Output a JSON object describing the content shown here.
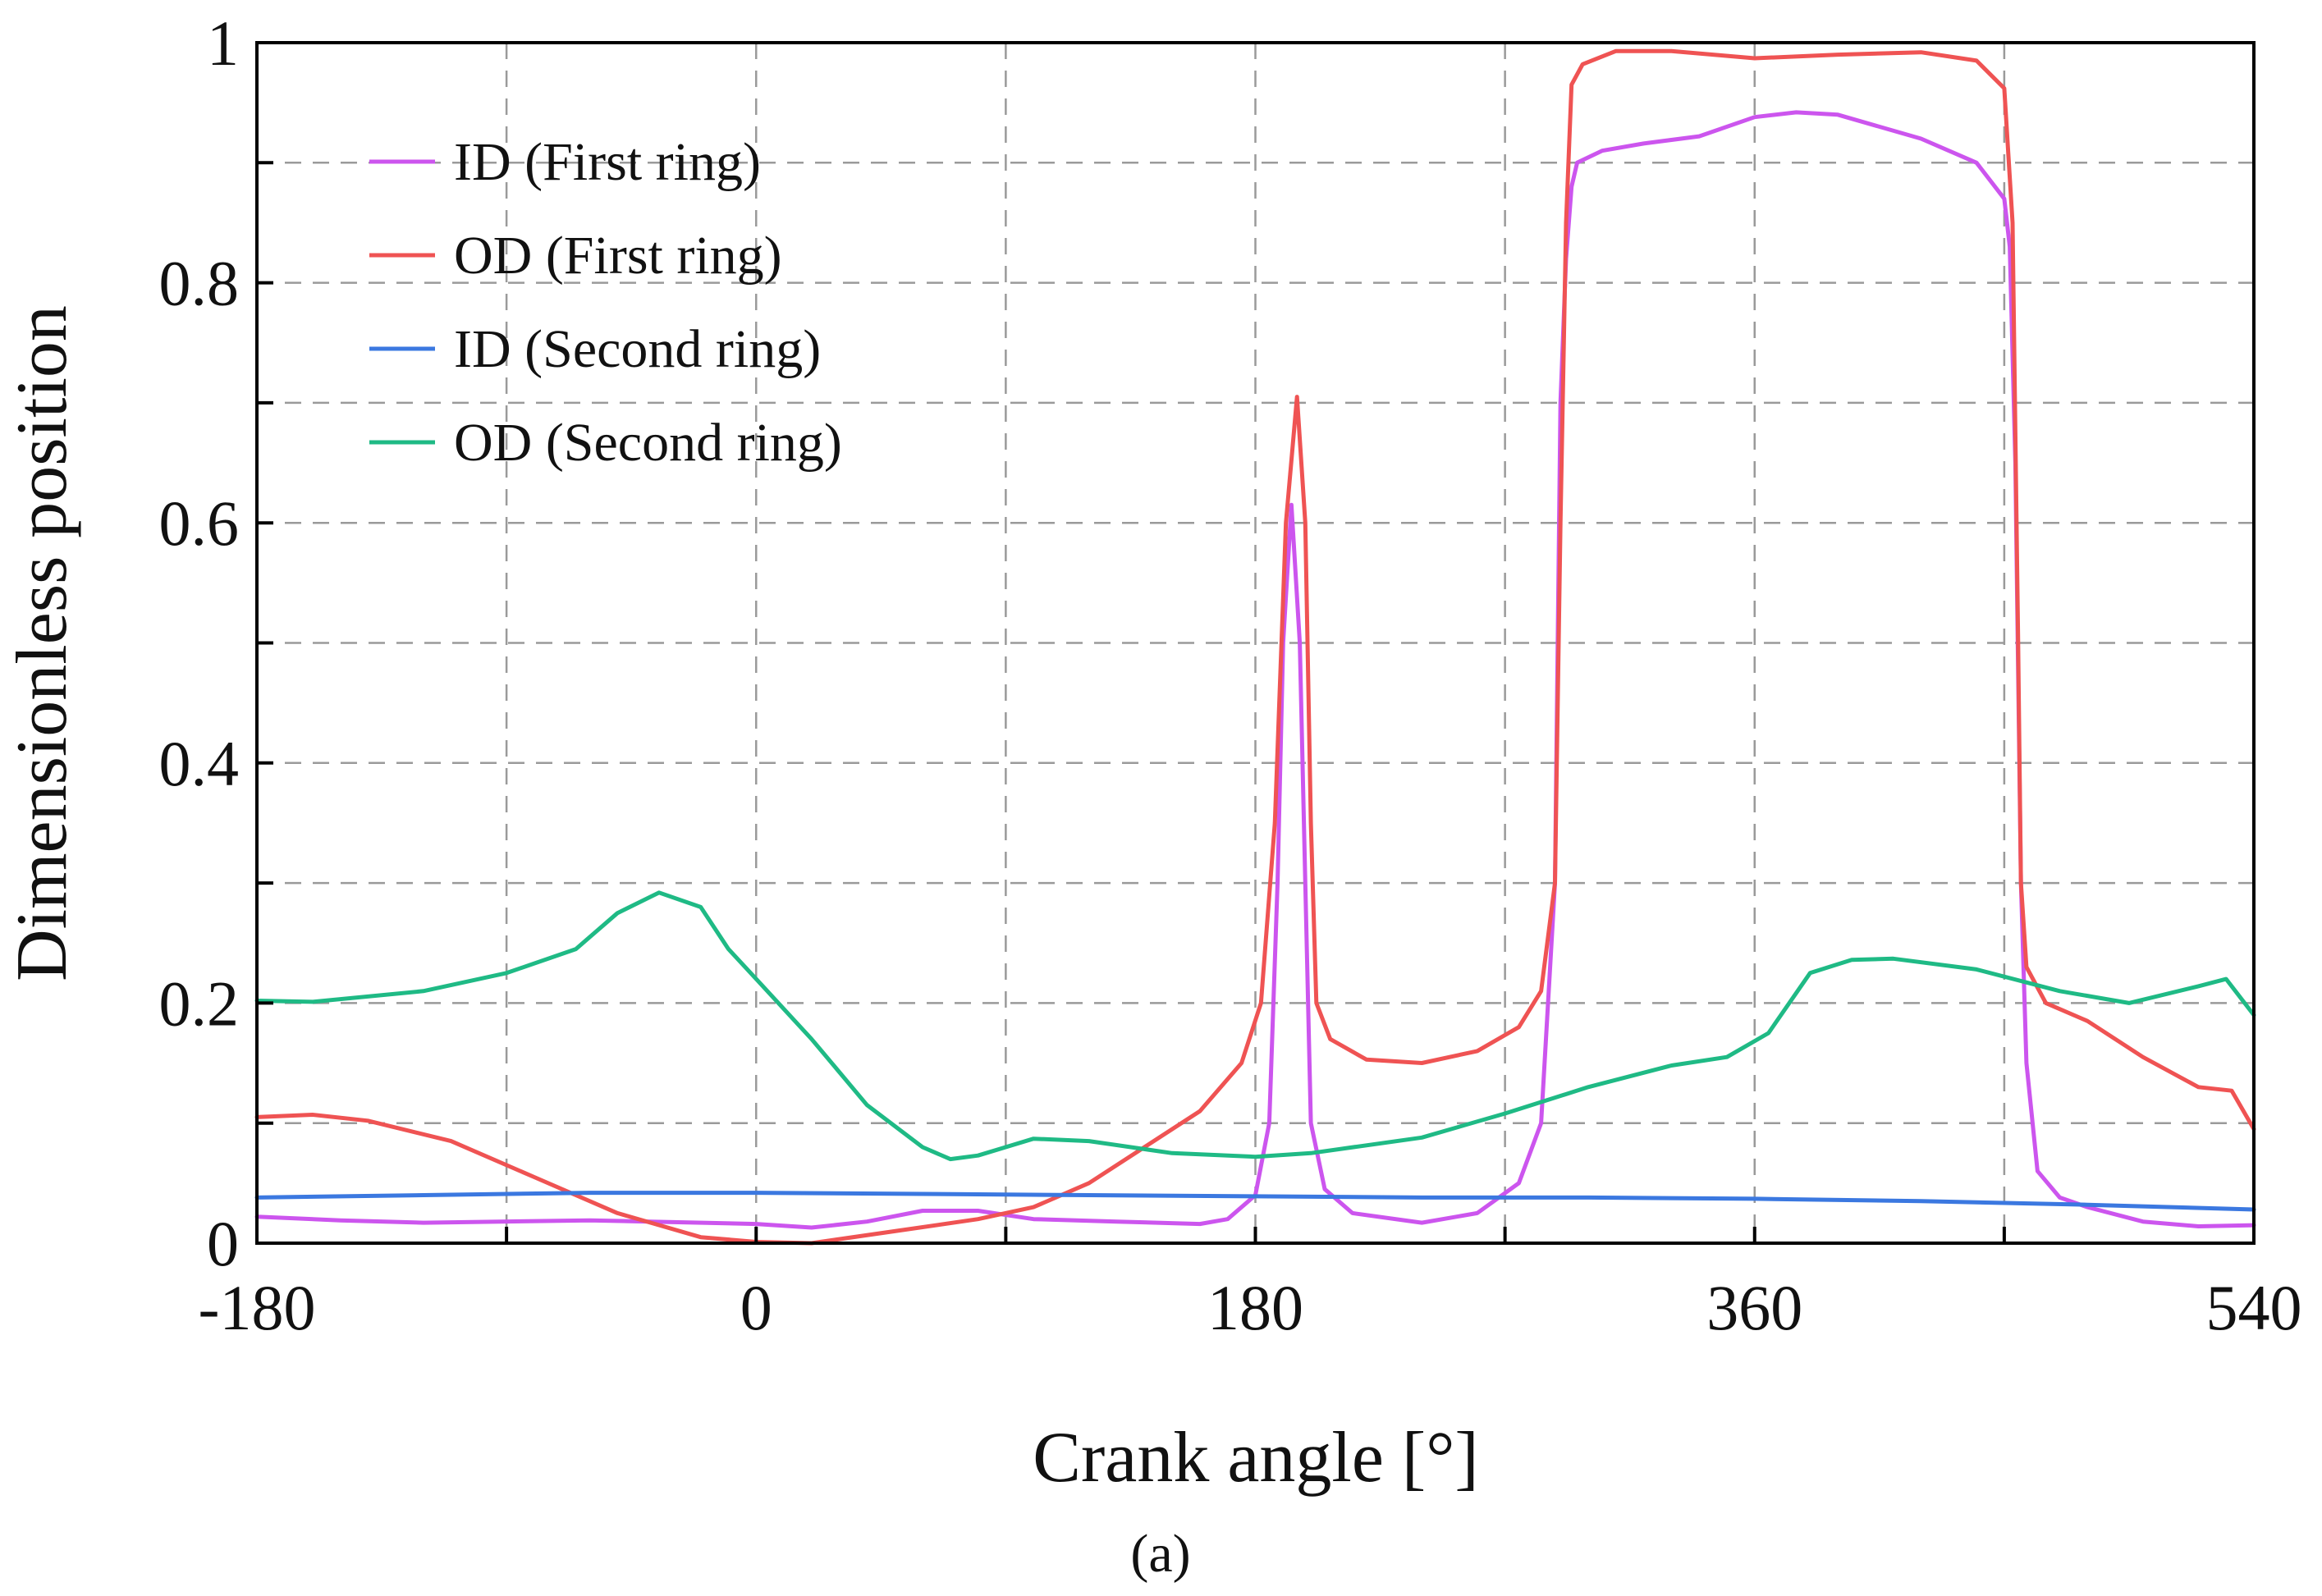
{
  "chart_data": {
    "type": "line",
    "title": "",
    "subfigure_label": "(a)",
    "xlabel": "Crank angle [°]",
    "ylabel": "Dimensionless position",
    "xlim": [
      -180,
      540
    ],
    "ylim": [
      0,
      1
    ],
    "x_ticks": [
      -180,
      -90,
      0,
      90,
      180,
      270,
      360,
      450,
      540
    ],
    "x_tick_labels": [
      "-180",
      "",
      "0",
      "",
      "180",
      "",
      "360",
      "",
      "540"
    ],
    "y_ticks": [
      0,
      0.1,
      0.2,
      0.3,
      0.4,
      0.5,
      0.6,
      0.7,
      0.8,
      0.9,
      1.0
    ],
    "y_tick_labels": [
      "0",
      "",
      "0.2",
      "",
      "0.4",
      "",
      "0.6",
      "",
      "0.8",
      "",
      "1"
    ],
    "grid": true,
    "legend_position": "top-left",
    "series": [
      {
        "name": "ID (First ring)",
        "color": "#cc55ee",
        "points": [
          [
            -180,
            0.022
          ],
          [
            -150,
            0.019
          ],
          [
            -120,
            0.017
          ],
          [
            -60,
            0.019
          ],
          [
            0,
            0.016
          ],
          [
            20,
            0.013
          ],
          [
            40,
            0.018
          ],
          [
            60,
            0.027
          ],
          [
            80,
            0.027
          ],
          [
            100,
            0.02
          ],
          [
            130,
            0.018
          ],
          [
            160,
            0.016
          ],
          [
            170,
            0.02
          ],
          [
            180,
            0.04
          ],
          [
            185,
            0.1
          ],
          [
            188,
            0.3
          ],
          [
            190,
            0.5
          ],
          [
            193,
            0.615
          ],
          [
            196,
            0.5
          ],
          [
            198,
            0.3
          ],
          [
            200,
            0.1
          ],
          [
            205,
            0.045
          ],
          [
            215,
            0.025
          ],
          [
            240,
            0.017
          ],
          [
            260,
            0.025
          ],
          [
            275,
            0.05
          ],
          [
            283,
            0.1
          ],
          [
            288,
            0.3
          ],
          [
            290,
            0.7
          ],
          [
            292,
            0.82
          ],
          [
            294,
            0.88
          ],
          [
            296,
            0.9
          ],
          [
            305,
            0.91
          ],
          [
            320,
            0.916
          ],
          [
            340,
            0.922
          ],
          [
            360,
            0.938
          ],
          [
            375,
            0.942
          ],
          [
            390,
            0.94
          ],
          [
            420,
            0.92
          ],
          [
            440,
            0.9
          ],
          [
            450,
            0.87
          ],
          [
            452,
            0.83
          ],
          [
            454,
            0.65
          ],
          [
            456,
            0.3
          ],
          [
            458,
            0.15
          ],
          [
            462,
            0.06
          ],
          [
            470,
            0.038
          ],
          [
            480,
            0.03
          ],
          [
            500,
            0.018
          ],
          [
            520,
            0.014
          ],
          [
            540,
            0.015
          ]
        ]
      },
      {
        "name": "OD (First ring)",
        "color": "#ef5353",
        "points": [
          [
            -180,
            0.105
          ],
          [
            -160,
            0.107
          ],
          [
            -140,
            0.102
          ],
          [
            -110,
            0.085
          ],
          [
            -80,
            0.055
          ],
          [
            -50,
            0.025
          ],
          [
            -20,
            0.005
          ],
          [
            0,
            0.001
          ],
          [
            20,
            0.0
          ],
          [
            50,
            0.01
          ],
          [
            80,
            0.02
          ],
          [
            100,
            0.03
          ],
          [
            120,
            0.05
          ],
          [
            140,
            0.08
          ],
          [
            160,
            0.11
          ],
          [
            175,
            0.15
          ],
          [
            182,
            0.2
          ],
          [
            187,
            0.35
          ],
          [
            191,
            0.6
          ],
          [
            195,
            0.705
          ],
          [
            198,
            0.6
          ],
          [
            200,
            0.35
          ],
          [
            202,
            0.2
          ],
          [
            207,
            0.17
          ],
          [
            220,
            0.153
          ],
          [
            240,
            0.15
          ],
          [
            260,
            0.16
          ],
          [
            275,
            0.18
          ],
          [
            283,
            0.21
          ],
          [
            288,
            0.3
          ],
          [
            290,
            0.6
          ],
          [
            292,
            0.85
          ],
          [
            294,
            0.965
          ],
          [
            298,
            0.982
          ],
          [
            310,
            0.993
          ],
          [
            330,
            0.993
          ],
          [
            360,
            0.987
          ],
          [
            390,
            0.99
          ],
          [
            420,
            0.992
          ],
          [
            440,
            0.985
          ],
          [
            450,
            0.962
          ],
          [
            453,
            0.85
          ],
          [
            455,
            0.5
          ],
          [
            456,
            0.3
          ],
          [
            458,
            0.23
          ],
          [
            465,
            0.2
          ],
          [
            480,
            0.185
          ],
          [
            500,
            0.155
          ],
          [
            520,
            0.13
          ],
          [
            532,
            0.127
          ],
          [
            540,
            0.095
          ]
        ]
      },
      {
        "name": "ID (Second ring)",
        "color": "#3b78e0",
        "points": [
          [
            -180,
            0.038
          ],
          [
            -120,
            0.04
          ],
          [
            -60,
            0.042
          ],
          [
            0,
            0.042
          ],
          [
            60,
            0.041
          ],
          [
            120,
            0.04
          ],
          [
            180,
            0.039
          ],
          [
            240,
            0.038
          ],
          [
            300,
            0.038
          ],
          [
            360,
            0.037
          ],
          [
            420,
            0.035
          ],
          [
            480,
            0.032
          ],
          [
            540,
            0.028
          ]
        ]
      },
      {
        "name": "OD (Second ring)",
        "color": "#1fba85",
        "points": [
          [
            -180,
            0.202
          ],
          [
            -160,
            0.201
          ],
          [
            -120,
            0.21
          ],
          [
            -90,
            0.225
          ],
          [
            -65,
            0.245
          ],
          [
            -50,
            0.275
          ],
          [
            -35,
            0.292
          ],
          [
            -20,
            0.28
          ],
          [
            -10,
            0.245
          ],
          [
            0,
            0.22
          ],
          [
            20,
            0.17
          ],
          [
            40,
            0.115
          ],
          [
            60,
            0.08
          ],
          [
            70,
            0.07
          ],
          [
            80,
            0.073
          ],
          [
            100,
            0.087
          ],
          [
            120,
            0.085
          ],
          [
            150,
            0.075
          ],
          [
            180,
            0.072
          ],
          [
            200,
            0.075
          ],
          [
            240,
            0.088
          ],
          [
            270,
            0.108
          ],
          [
            300,
            0.13
          ],
          [
            330,
            0.148
          ],
          [
            350,
            0.155
          ],
          [
            365,
            0.175
          ],
          [
            380,
            0.225
          ],
          [
            395,
            0.236
          ],
          [
            410,
            0.237
          ],
          [
            440,
            0.228
          ],
          [
            470,
            0.21
          ],
          [
            495,
            0.2
          ],
          [
            520,
            0.214
          ],
          [
            530,
            0.22
          ],
          [
            540,
            0.19
          ]
        ]
      }
    ]
  }
}
